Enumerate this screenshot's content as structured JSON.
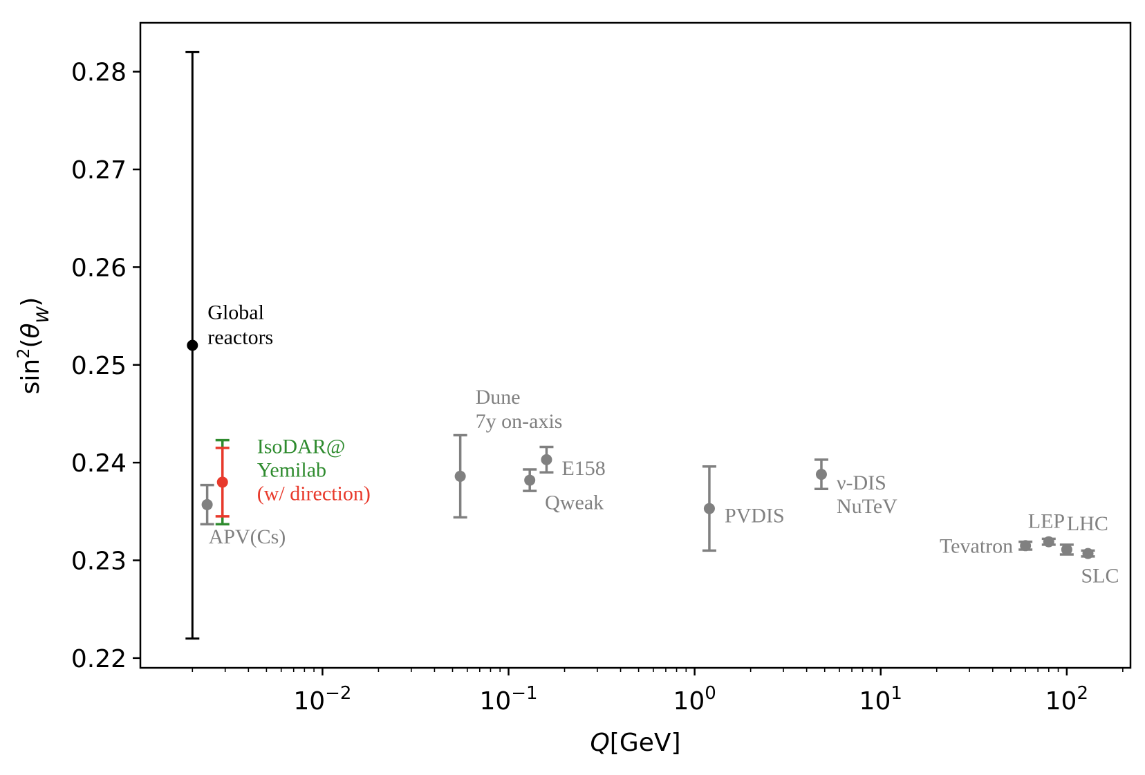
{
  "chart_data": {
    "type": "scatter",
    "xlabel": "Q[GeV]",
    "ylabel": "sin²(θW)",
    "xscale": "log",
    "xlim": [
      0.00105,
      220
    ],
    "ylim": [
      0.219,
      0.285
    ],
    "grid": false,
    "yticks": [
      {
        "value": 0.22,
        "label": "0.22"
      },
      {
        "value": 0.23,
        "label": "0.23"
      },
      {
        "value": 0.24,
        "label": "0.24"
      },
      {
        "value": 0.25,
        "label": "0.25"
      },
      {
        "value": 0.26,
        "label": "0.26"
      },
      {
        "value": 0.27,
        "label": "0.27"
      },
      {
        "value": 0.28,
        "label": "0.28"
      }
    ],
    "xticks": [
      {
        "value": 0.01,
        "base": "10",
        "exp": "−2"
      },
      {
        "value": 0.1,
        "base": "10",
        "exp": "−1"
      },
      {
        "value": 1,
        "base": "10",
        "exp": "0"
      },
      {
        "value": 10,
        "base": "10",
        "exp": "1"
      },
      {
        "value": 100,
        "base": "10",
        "exp": "2"
      }
    ],
    "points": [
      {
        "id": "global-reactors",
        "x": 0.002,
        "y": 0.252,
        "err": 0.03,
        "color": "#000000",
        "label": [
          "Global",
          "reactors"
        ]
      },
      {
        "id": "isodar-yemilab",
        "x": 0.0029,
        "y": 0.238,
        "err": 0.0043,
        "color": "#2e8b2e",
        "label": [
          "IsoDAR@",
          "Yemilab"
        ]
      },
      {
        "id": "isodar-direction",
        "x": 0.0029,
        "y": 0.238,
        "err": 0.0035,
        "color": "#e8392b",
        "label": [
          "(w/ direction)"
        ]
      },
      {
        "id": "apv-cs",
        "x": 0.0024,
        "y": 0.2357,
        "err": 0.002,
        "color": "#808080",
        "label": [
          "APV(Cs)"
        ]
      },
      {
        "id": "dune",
        "x": 0.055,
        "y": 0.2386,
        "err": 0.0042,
        "color": "#808080",
        "label": [
          "Dune",
          "7y on-axis"
        ]
      },
      {
        "id": "qweak",
        "x": 0.13,
        "y": 0.2382,
        "err": 0.0011,
        "color": "#808080",
        "label": [
          "Qweak"
        ]
      },
      {
        "id": "e158",
        "x": 0.16,
        "y": 0.2403,
        "err": 0.0013,
        "color": "#808080",
        "label": [
          "E158"
        ]
      },
      {
        "id": "pvdis",
        "x": 1.2,
        "y": 0.2353,
        "err": 0.0043,
        "color": "#808080",
        "label": [
          "PVDIS"
        ]
      },
      {
        "id": "nutev",
        "x": 4.8,
        "y": 0.2388,
        "err": 0.0015,
        "color": "#808080",
        "label": [
          "ν-DIS",
          "NuTeV"
        ]
      },
      {
        "id": "tevatron",
        "x": 60,
        "y": 0.2315,
        "err": 0.0004,
        "color": "#808080",
        "label": [
          "Tevatron"
        ]
      },
      {
        "id": "lep",
        "x": 80,
        "y": 0.2319,
        "err": 0.0003,
        "color": "#808080",
        "label": [
          "LEP"
        ]
      },
      {
        "id": "lhc",
        "x": 100,
        "y": 0.2311,
        "err": 0.0005,
        "color": "#808080",
        "label": [
          "LHC"
        ]
      },
      {
        "id": "slc",
        "x": 130,
        "y": 0.2307,
        "err": 0.0003,
        "color": "#808080",
        "label": [
          "SLC"
        ]
      }
    ]
  }
}
